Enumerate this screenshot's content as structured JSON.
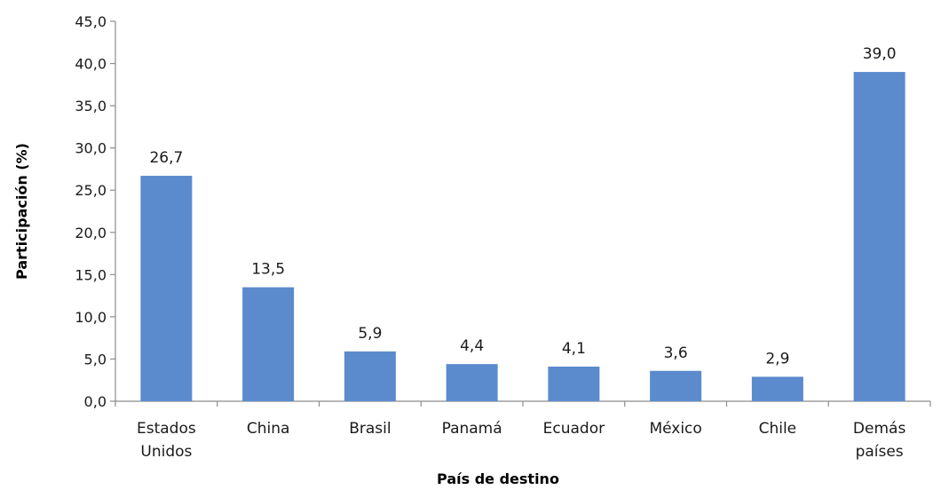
{
  "chart_data": {
    "type": "bar",
    "categories": [
      [
        "Estados",
        "Unidos"
      ],
      [
        "China"
      ],
      [
        "Brasil"
      ],
      [
        "Panamá"
      ],
      [
        "Ecuador"
      ],
      [
        "México"
      ],
      [
        "Chile"
      ],
      [
        "Demás",
        "países"
      ]
    ],
    "values": [
      26.7,
      13.5,
      5.9,
      4.4,
      4.1,
      3.6,
      2.9,
      39.0
    ],
    "data_labels": [
      "26,7",
      "13,5",
      "5,9",
      "4,4",
      "4,1",
      "3,6",
      "2,9",
      "39,0"
    ],
    "xlabel": "País de destino",
    "ylabel": "Participación  (%)",
    "ylim": [
      0,
      45
    ],
    "yticks": [
      0,
      5,
      10,
      15,
      20,
      25,
      30,
      35,
      40,
      45
    ],
    "ytick_labels": [
      "0,0",
      "5,0",
      "10,0",
      "15,0",
      "20,0",
      "25,0",
      "30,0",
      "35,0",
      "40,0",
      "45,0"
    ],
    "bar_color": "#5b8bcc",
    "axis_color": "#8c8c8c",
    "grid": false,
    "legend": "none"
  }
}
